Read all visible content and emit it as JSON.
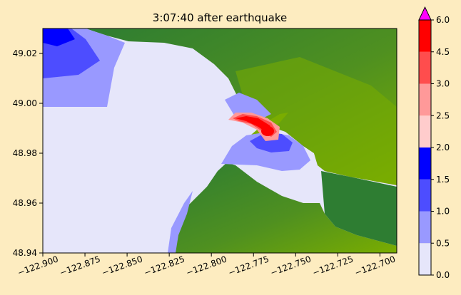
{
  "chart_data": {
    "type": "heatmap",
    "title": "3:07:40 after earthquake",
    "xlabel": "",
    "ylabel": "",
    "xlim": [
      -122.9,
      -122.69
    ],
    "ylim": [
      48.94,
      49.03
    ],
    "xticks": [
      -122.9,
      -122.875,
      -122.85,
      -122.825,
      -122.8,
      -122.775,
      -122.75,
      -122.725,
      -122.7
    ],
    "xtick_labels": [
      "−122.900",
      "−122.875",
      "−122.850",
      "−122.825",
      "−122.800",
      "−122.775",
      "−122.750",
      "−122.725",
      "−122.700"
    ],
    "yticks": [
      48.94,
      48.96,
      48.98,
      49.0,
      49.02
    ],
    "ytick_labels": [
      "48.94",
      "48.96",
      "48.98",
      "49.00",
      "49.02"
    ],
    "land_colors": {
      "low": "#7aad00",
      "high": "#2e7d32"
    },
    "colorbar": {
      "levels": [
        0.0,
        0.5,
        1.0,
        1.5,
        2.0,
        2.5,
        3.0,
        4.5,
        6.0
      ],
      "labels": [
        "0.0",
        "0.5",
        "1.0",
        "1.5",
        "2.0",
        "2.5",
        "3.0",
        "4.5",
        "6.0"
      ],
      "colors": [
        "#e6e6fa",
        "#9999ff",
        "#4d4dff",
        "#0000ff",
        "#ffcccc",
        "#ff9999",
        "#ff4d4d",
        "#ff0000"
      ],
      "extend_max_color": "#ff00ff",
      "extend": "max"
    }
  }
}
